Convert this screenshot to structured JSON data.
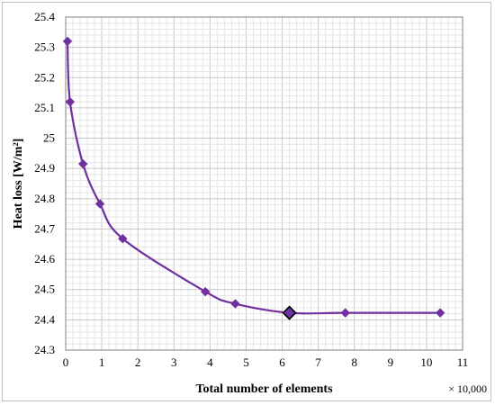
{
  "chart_data": {
    "type": "scatter",
    "title": "",
    "xlabel": "Total number of elements",
    "ylabel": "Heat loss  [W/m²]",
    "x_multiplier_label": "× 10,000",
    "xlim": [
      0,
      11
    ],
    "ylim": [
      24.3,
      25.4
    ],
    "x_ticks": [
      "0",
      "1",
      "2",
      "3",
      "4",
      "5",
      "6",
      "7",
      "8",
      "9",
      "10",
      "11"
    ],
    "y_ticks": [
      "24.3",
      "24.4",
      "24.5",
      "24.6",
      "24.7",
      "24.8",
      "24.9",
      "25",
      "25.1",
      "25.2",
      "25.3",
      "25.4"
    ],
    "grid": true,
    "series_color": "#7030a0",
    "highlight_marker_edge": "#000000",
    "series": [
      {
        "x": [
          0.05,
          0.12,
          0.48,
          0.95,
          1.58,
          3.87,
          4.7,
          6.2,
          7.75,
          10.38
        ],
        "y": [
          25.32,
          25.12,
          24.915,
          24.783,
          24.668,
          24.493,
          24.453,
          24.423,
          24.423,
          24.423
        ],
        "highlight_index": 7
      }
    ]
  }
}
